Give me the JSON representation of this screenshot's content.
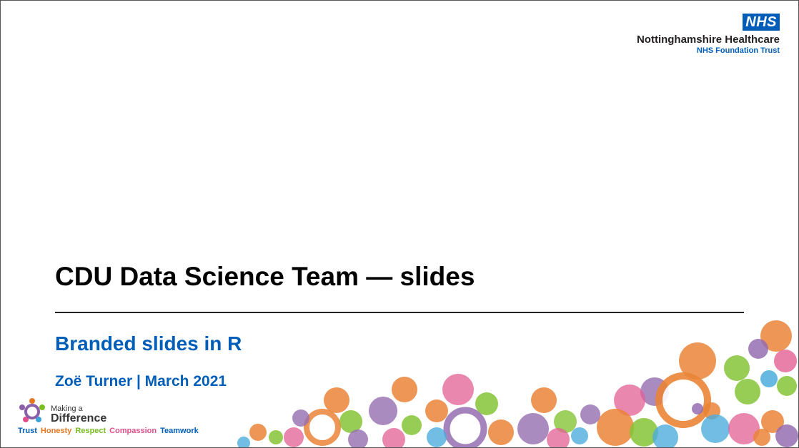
{
  "brand": {
    "nhs_logo": "NHS",
    "org_name": "Nottinghamshire Healthcare",
    "org_sub": "NHS Foundation Trust",
    "colors": {
      "nhs_blue": "#005eb8",
      "orange": "#e87722",
      "purple": "#8a5ea8",
      "green": "#78be20",
      "pink": "#e04f8a",
      "teal": "#3aa3d9"
    }
  },
  "slide": {
    "title": "CDU Data Science Team — slides",
    "subtitle": "Branded slides in R",
    "author_line": "Zoë Turner | March 2021"
  },
  "footer": {
    "making": "Making a",
    "difference": "Difference",
    "values": [
      {
        "label": "Trust",
        "color": "#005eb8"
      },
      {
        "label": "Honesty",
        "color": "#e87722"
      },
      {
        "label": "Respect",
        "color": "#78be20"
      },
      {
        "label": "Compassion",
        "color": "#e04f8a"
      },
      {
        "label": "Teamwork",
        "color": "#005eb8"
      }
    ]
  }
}
